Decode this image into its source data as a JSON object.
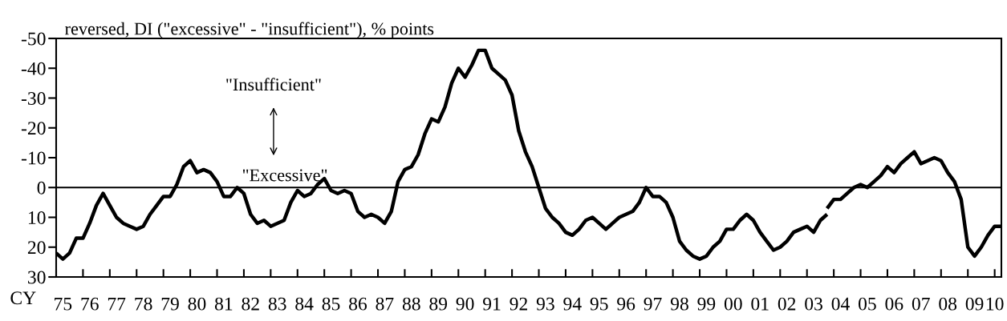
{
  "chart_data": {
    "type": "line",
    "ylabel": "reversed, DI (\"excessive\" - \"insufficient\"), % points",
    "xlabel": "CY",
    "annotations": [
      "\"Insufficient\"",
      "\"Excessive\""
    ],
    "categories": [
      null,
      "75",
      null,
      null,
      null,
      "76",
      null,
      null,
      null,
      "77",
      null,
      null,
      null,
      "78",
      null,
      null,
      null,
      "79",
      null,
      null,
      null,
      "80",
      null,
      null,
      null,
      "81",
      null,
      null,
      null,
      "82",
      null,
      null,
      null,
      "83",
      null,
      null,
      null,
      "84",
      null,
      null,
      null,
      "85",
      null,
      null,
      null,
      "86",
      null,
      null,
      null,
      "87",
      null,
      null,
      null,
      "88",
      null,
      null,
      null,
      "89",
      null,
      null,
      null,
      "90",
      null,
      null,
      null,
      "91",
      null,
      null,
      null,
      "92",
      null,
      null,
      null,
      "93",
      null,
      null,
      null,
      "94",
      null,
      null,
      null,
      "95",
      null,
      null,
      null,
      "96",
      null,
      null,
      null,
      "97",
      null,
      null,
      null,
      "98",
      null,
      null,
      null,
      "99",
      null,
      null,
      null,
      "00",
      null,
      null,
      null,
      "01",
      null,
      null,
      null,
      "02",
      null,
      null,
      null,
      "03",
      null,
      null,
      null,
      "04",
      null,
      null,
      null,
      "05",
      null,
      null,
      null,
      "06",
      null,
      null,
      null,
      "07",
      null,
      null,
      null,
      "08",
      null,
      null,
      null,
      "09",
      null,
      null,
      "10",
      null
    ],
    "series": [
      {
        "color": "#000000",
        "values": [
          22,
          24,
          22,
          17,
          17,
          12,
          6,
          2,
          6,
          10,
          12,
          13,
          14,
          13,
          9,
          6,
          3,
          3,
          -1,
          -7,
          -9,
          -5,
          -6,
          -5,
          -2,
          3,
          3,
          0,
          2,
          9,
          12,
          11,
          13,
          12,
          11,
          5,
          1,
          3,
          2,
          -1,
          -3,
          1,
          2,
          1,
          2,
          8,
          10,
          9,
          10,
          12,
          8,
          -2,
          -6,
          -7,
          -11,
          -18,
          -23,
          -22,
          -27,
          -35,
          -40,
          -37,
          -41,
          -46,
          -46,
          -40,
          -38,
          -36,
          -31,
          -19,
          -12,
          -7,
          0,
          7,
          10,
          12,
          15,
          16,
          14,
          11,
          10,
          12,
          14,
          12,
          10,
          9,
          8,
          5,
          0,
          3,
          3,
          5,
          10,
          18,
          21,
          23,
          24,
          23,
          20,
          18,
          14,
          14,
          11,
          9,
          11,
          15,
          18,
          21,
          20,
          18,
          15,
          14,
          13,
          15,
          11,
          9,
          null,
          null,
          null,
          null,
          null,
          null,
          null,
          null,
          null,
          null,
          null,
          null,
          null,
          null,
          null,
          null,
          null,
          null,
          null,
          null,
          null,
          null,
          null,
          null,
          null,
          null
        ]
      },
      {
        "color": "#000000",
        "values": [
          null,
          null,
          null,
          null,
          null,
          null,
          null,
          null,
          null,
          null,
          null,
          null,
          null,
          null,
          null,
          null,
          null,
          null,
          null,
          null,
          null,
          null,
          null,
          null,
          null,
          null,
          null,
          null,
          null,
          null,
          null,
          null,
          null,
          null,
          null,
          null,
          null,
          null,
          null,
          null,
          null,
          null,
          null,
          null,
          null,
          null,
          null,
          null,
          null,
          null,
          null,
          null,
          null,
          null,
          null,
          null,
          null,
          null,
          null,
          null,
          null,
          null,
          null,
          null,
          null,
          null,
          null,
          null,
          null,
          null,
          null,
          null,
          null,
          null,
          null,
          null,
          null,
          null,
          null,
          null,
          null,
          null,
          null,
          null,
          null,
          null,
          null,
          null,
          null,
          null,
          null,
          null,
          null,
          null,
          null,
          null,
          null,
          null,
          null,
          null,
          null,
          null,
          null,
          null,
          null,
          null,
          null,
          null,
          null,
          null,
          null,
          null,
          null,
          null,
          null,
          7,
          4,
          4,
          2,
          0,
          -1,
          0,
          -2,
          -4,
          -7,
          -5,
          -8,
          -10,
          -12,
          -8,
          -9,
          -10,
          -9,
          -5,
          -2,
          4,
          20,
          23,
          20,
          16,
          13,
          13
        ]
      }
    ],
    "ylim": [
      30,
      -50
    ],
    "yticks": [
      -50,
      -40,
      -30,
      -20,
      -10,
      0,
      10,
      20,
      30
    ],
    "ref_lines": [
      {
        "axis": "y",
        "value": 0,
        "color": "#000000",
        "line_style": "solid"
      }
    ],
    "grid": false,
    "legend": false,
    "marker": "none",
    "line_style": "solid"
  }
}
